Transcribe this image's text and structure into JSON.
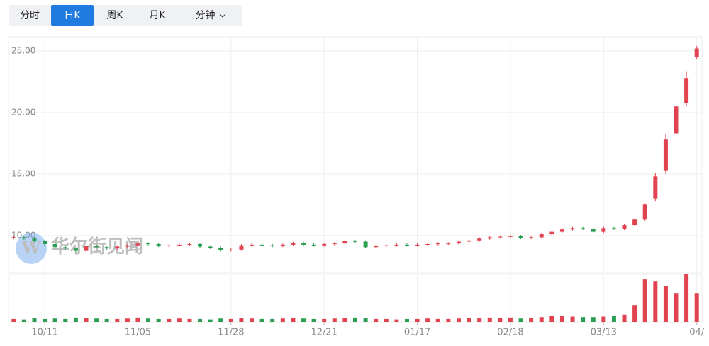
{
  "tabs": [
    "分时",
    "日K",
    "周K",
    "月K",
    "分钟"
  ],
  "active_tab": 1,
  "chart_data": {
    "type": "candlestick",
    "watermark": "华尔街见闻",
    "up_color": "#e0424f",
    "down_color": "#2a9d52",
    "grid": true,
    "categories": [
      null,
      null,
      null,
      "10/11",
      null,
      null,
      null,
      null,
      null,
      null,
      null,
      null,
      "11/05",
      null,
      null,
      null,
      null,
      null,
      null,
      null,
      null,
      "11/28",
      null,
      null,
      null,
      null,
      null,
      null,
      null,
      null,
      "12/21",
      null,
      null,
      null,
      null,
      null,
      null,
      null,
      null,
      "01/17",
      null,
      null,
      null,
      null,
      null,
      null,
      null,
      null,
      "02/18",
      null,
      null,
      null,
      null,
      null,
      null,
      null,
      null,
      "03/13",
      null,
      null,
      null,
      null,
      null,
      null,
      null,
      null,
      "04/"
    ],
    "open": [
      9.8,
      9.85,
      9.75,
      9.55,
      9.3,
      9.05,
      8.95,
      8.75,
      9.15,
      9.05,
      8.95,
      9.1,
      9.2,
      9.35,
      9.3,
      9.15,
      9.2,
      9.25,
      9.3,
      9.1,
      9.0,
      8.8,
      8.85,
      9.2,
      9.25,
      9.2,
      9.15,
      9.25,
      9.4,
      9.25,
      9.2,
      9.3,
      9.35,
      9.55,
      9.5,
      9.05,
      9.15,
      9.2,
      9.25,
      9.2,
      9.25,
      9.3,
      9.35,
      9.35,
      9.5,
      9.6,
      9.75,
      9.85,
      9.9,
      9.95,
      9.8,
      9.85,
      10.1,
      10.3,
      10.5,
      10.6,
      10.55,
      10.3,
      10.6,
      10.55,
      10.85,
      11.3,
      13.0,
      15.3,
      18.3,
      20.8,
      24.5
    ],
    "high": [
      9.95,
      9.95,
      9.85,
      9.65,
      9.4,
      9.15,
      9.05,
      9.25,
      9.25,
      9.15,
      9.2,
      9.3,
      9.45,
      9.45,
      9.4,
      9.3,
      9.35,
      9.4,
      9.4,
      9.2,
      9.1,
      8.95,
      9.3,
      9.35,
      9.35,
      9.3,
      9.35,
      9.5,
      9.5,
      9.35,
      9.4,
      9.45,
      9.65,
      9.65,
      9.6,
      9.25,
      9.3,
      9.35,
      9.35,
      9.35,
      9.4,
      9.45,
      9.45,
      9.6,
      9.7,
      9.85,
      9.95,
      10.0,
      10.05,
      10.05,
      9.95,
      10.2,
      10.4,
      10.6,
      10.7,
      10.7,
      10.65,
      10.7,
      10.7,
      10.95,
      11.4,
      12.6,
      15.1,
      18.2,
      20.9,
      23.3,
      25.4
    ],
    "low": [
      9.7,
      9.65,
      9.45,
      9.2,
      8.95,
      8.85,
      8.65,
      8.65,
      8.95,
      8.85,
      8.85,
      9.0,
      9.1,
      9.2,
      9.05,
      9.05,
      9.1,
      9.15,
      9.0,
      8.9,
      8.7,
      8.7,
      8.75,
      9.1,
      9.1,
      9.05,
      9.05,
      9.15,
      9.15,
      9.1,
      9.1,
      9.2,
      9.25,
      9.4,
      8.95,
      8.95,
      9.05,
      9.1,
      9.1,
      9.1,
      9.15,
      9.2,
      9.25,
      9.25,
      9.4,
      9.5,
      9.65,
      9.75,
      9.8,
      9.7,
      9.7,
      9.75,
      10.0,
      10.2,
      10.4,
      10.45,
      10.2,
      10.2,
      10.45,
      10.45,
      10.75,
      11.2,
      12.8,
      15.0,
      18.0,
      20.5,
      24.3
    ],
    "close": [
      9.85,
      9.75,
      9.55,
      9.3,
      9.05,
      8.95,
      8.75,
      9.15,
      9.05,
      8.95,
      9.1,
      9.2,
      9.35,
      9.3,
      9.15,
      9.2,
      9.25,
      9.3,
      9.1,
      9.0,
      8.8,
      8.85,
      9.2,
      9.25,
      9.2,
      9.15,
      9.25,
      9.4,
      9.25,
      9.2,
      9.3,
      9.35,
      9.55,
      9.5,
      9.05,
      9.15,
      9.2,
      9.25,
      9.2,
      9.25,
      9.3,
      9.35,
      9.35,
      9.5,
      9.6,
      9.75,
      9.85,
      9.9,
      9.95,
      9.8,
      9.85,
      10.1,
      10.3,
      10.5,
      10.6,
      10.55,
      10.3,
      10.6,
      10.55,
      10.85,
      11.3,
      12.5,
      14.8,
      17.8,
      20.5,
      22.8,
      25.2
    ],
    "volume": [
      6,
      5,
      8,
      6,
      7,
      6,
      9,
      8,
      7,
      6,
      6,
      7,
      9,
      7,
      6,
      6,
      7,
      6,
      6,
      5,
      7,
      6,
      8,
      7,
      6,
      6,
      7,
      8,
      7,
      6,
      6,
      7,
      8,
      9,
      8,
      6,
      6,
      5,
      6,
      6,
      7,
      6,
      6,
      7,
      8,
      8,
      9,
      8,
      9,
      7,
      8,
      10,
      12,
      13,
      11,
      10,
      10,
      11,
      12,
      15,
      35,
      88,
      85,
      75,
      60,
      100,
      60
    ],
    "ylim": [
      7.0,
      26.15
    ],
    "yticks": [
      {
        "value": 10,
        "label": "10.00"
      },
      {
        "value": 15,
        "label": "15.00"
      },
      {
        "value": 20,
        "label": "20.00"
      },
      {
        "value": 25,
        "label": "25.00"
      }
    ],
    "volume_lim": [
      0,
      100
    ]
  }
}
